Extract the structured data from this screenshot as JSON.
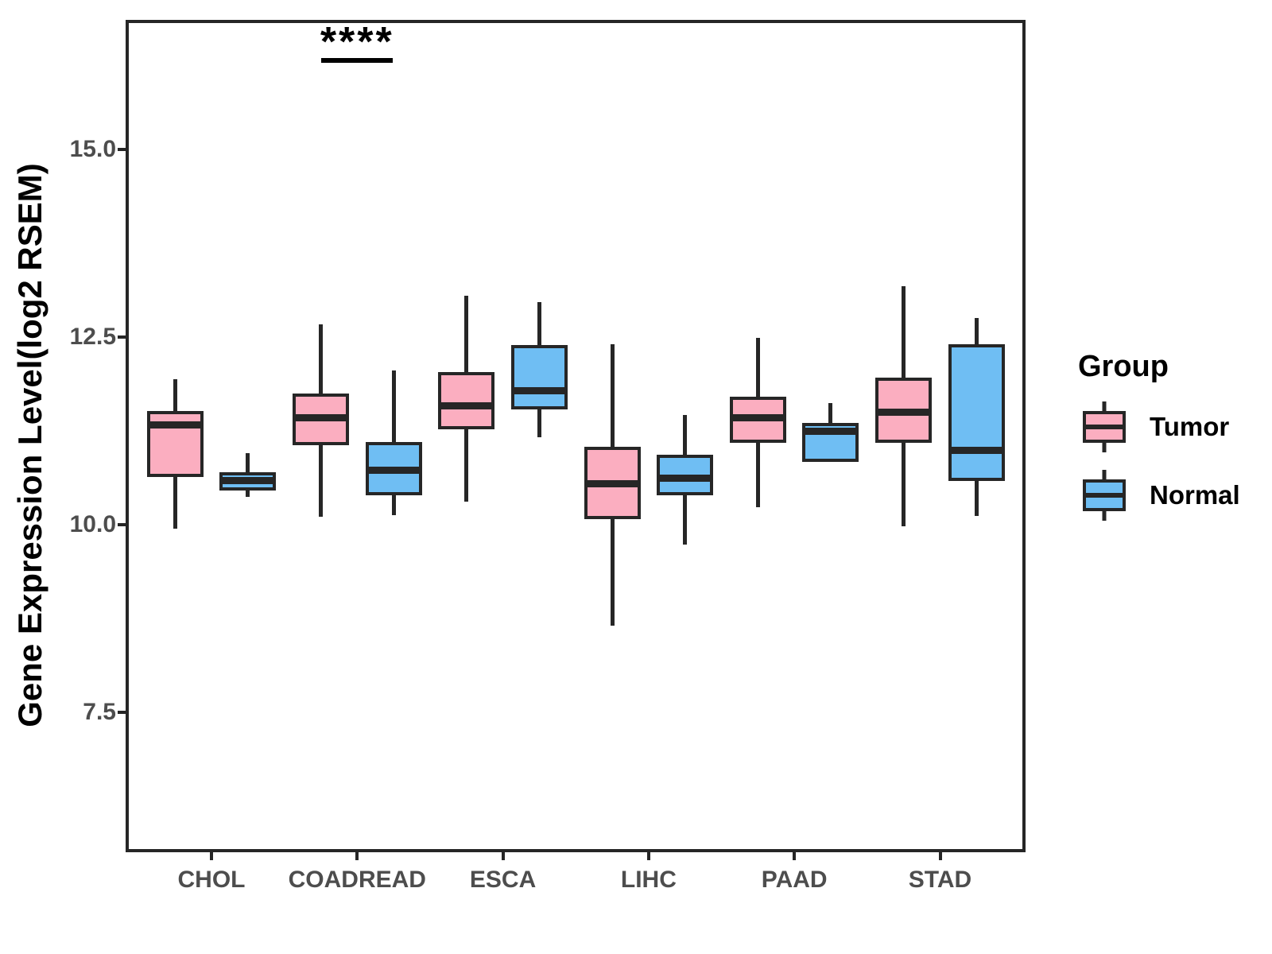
{
  "chart_data": {
    "type": "boxplot",
    "title": "",
    "ylabel": "Gene Expression Level(log2 RSEM)",
    "xlabel": "",
    "legend_title": "Group",
    "categories": [
      "CHOL",
      "COADREAD",
      "ESCA",
      "LIHC",
      "PAAD",
      "STAD"
    ],
    "series": [
      {
        "name": "Tumor",
        "color": "#FBAEC0",
        "boxes": [
          {
            "min": 9.95,
            "q1": 10.63,
            "median": 11.33,
            "q3": 11.51,
            "max": 11.94
          },
          {
            "min": 10.1,
            "q1": 11.06,
            "median": 11.42,
            "q3": 11.75,
            "max": 12.67
          },
          {
            "min": 10.31,
            "q1": 11.27,
            "median": 11.58,
            "q3": 12.03,
            "max": 13.05
          },
          {
            "min": 8.65,
            "q1": 10.07,
            "median": 10.54,
            "q3": 11.04,
            "max": 12.4
          },
          {
            "min": 10.23,
            "q1": 11.09,
            "median": 11.42,
            "q3": 11.7,
            "max": 12.49
          },
          {
            "min": 9.98,
            "q1": 11.09,
            "median": 11.5,
            "q3": 11.96,
            "max": 13.18
          }
        ]
      },
      {
        "name": "Normal",
        "color": "#6FBEF3",
        "boxes": [
          {
            "min": 10.37,
            "q1": 10.45,
            "median": 10.59,
            "q3": 10.7,
            "max": 10.95
          },
          {
            "min": 10.12,
            "q1": 10.39,
            "median": 10.72,
            "q3": 11.1,
            "max": 12.05
          },
          {
            "min": 11.16,
            "q1": 11.54,
            "median": 11.78,
            "q3": 12.39,
            "max": 12.97
          },
          {
            "min": 9.73,
            "q1": 10.39,
            "median": 10.62,
            "q3": 10.93,
            "max": 11.46
          },
          {
            "min": 10.84,
            "q1": 10.84,
            "median": 11.24,
            "q3": 11.35,
            "max": 11.62
          },
          {
            "min": 10.11,
            "q1": 10.58,
            "median": 10.99,
            "q3": 12.4,
            "max": 12.75
          }
        ]
      }
    ],
    "yticks": [
      {
        "value": 15.0,
        "label": "15.0"
      },
      {
        "value": 12.5,
        "label": "12.5"
      },
      {
        "value": 10.0,
        "label": "10.0"
      },
      {
        "value": 7.5,
        "label": "7.5"
      }
    ],
    "ylim": [
      5.63,
      16.73
    ],
    "grid": false,
    "panel_border": true,
    "legend_position": "right",
    "significance": [
      {
        "category": "COADREAD",
        "label": "****",
        "bar_value": 16.22,
        "stars_value": 16.45
      }
    ],
    "colors": {
      "box_outline": "#262626",
      "tick_text": "#4D4D4D",
      "axis_text": "#000000",
      "annotation": "#000000"
    }
  }
}
